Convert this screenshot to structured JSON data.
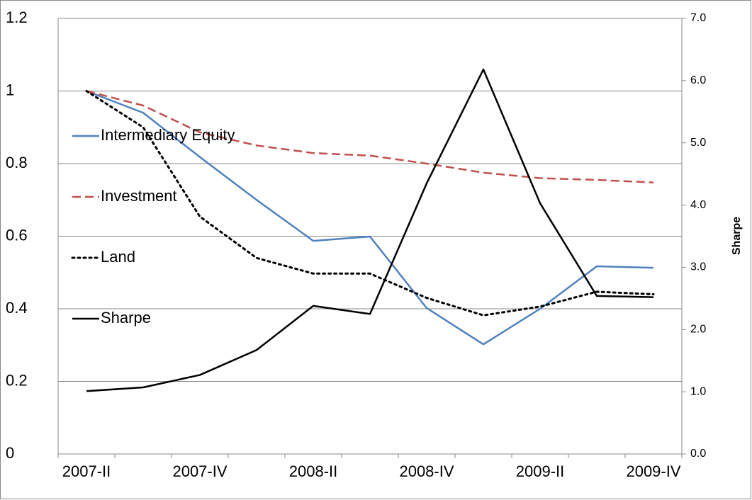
{
  "chart_data": {
    "type": "line",
    "categories": [
      "2007-II",
      null,
      "2007-IV",
      null,
      "2008-II",
      null,
      "2008-IV",
      null,
      "2009-II",
      null,
      "2009-IV"
    ],
    "ylim": [
      0,
      1.2
    ],
    "yticks": [
      0,
      0.2,
      0.4,
      0.6,
      0.8,
      1,
      1.2
    ],
    "y2lim": [
      0,
      7
    ],
    "y2ticks": [
      {
        "value": 0,
        "label": "0.0"
      },
      {
        "value": 1,
        "label": "1.0"
      },
      {
        "value": 2,
        "label": "2.0"
      },
      {
        "value": 3,
        "label": "3.0"
      },
      {
        "value": 4,
        "label": "4.0"
      },
      {
        "value": 5,
        "label": "5.0"
      },
      {
        "value": 6,
        "label": "6.0"
      },
      {
        "value": 7,
        "label": "7.0"
      }
    ],
    "y2label": "Sharpe",
    "grid": true,
    "legend": "left",
    "series": [
      {
        "name": "Intermediary Equity",
        "color": "#4f81bd",
        "style": "solid",
        "values": [
          1.0,
          0.94,
          0.818,
          0.7,
          0.587,
          0.599,
          0.402,
          0.302,
          0.4,
          0.517,
          0.513
        ]
      },
      {
        "name": "Investment",
        "color": "#c0504d",
        "style": "dashed",
        "values": [
          1.0,
          0.96,
          0.886,
          0.85,
          0.829,
          0.822,
          0.8,
          0.775,
          0.76,
          0.755,
          0.748
        ]
      },
      {
        "name": "Land",
        "color": "#000000",
        "style": "dotted",
        "values": [
          1.0,
          0.9,
          0.654,
          0.54,
          0.497,
          0.497,
          0.43,
          0.382,
          0.406,
          0.447,
          0.44
        ]
      },
      {
        "name": "Sharpe",
        "color": "#000000",
        "style": "solid",
        "axis": "y2",
        "values": [
          1.01,
          1.07,
          1.27,
          1.67,
          2.38,
          2.25,
          4.35,
          6.18,
          4.03,
          2.54,
          2.52
        ]
      }
    ]
  }
}
